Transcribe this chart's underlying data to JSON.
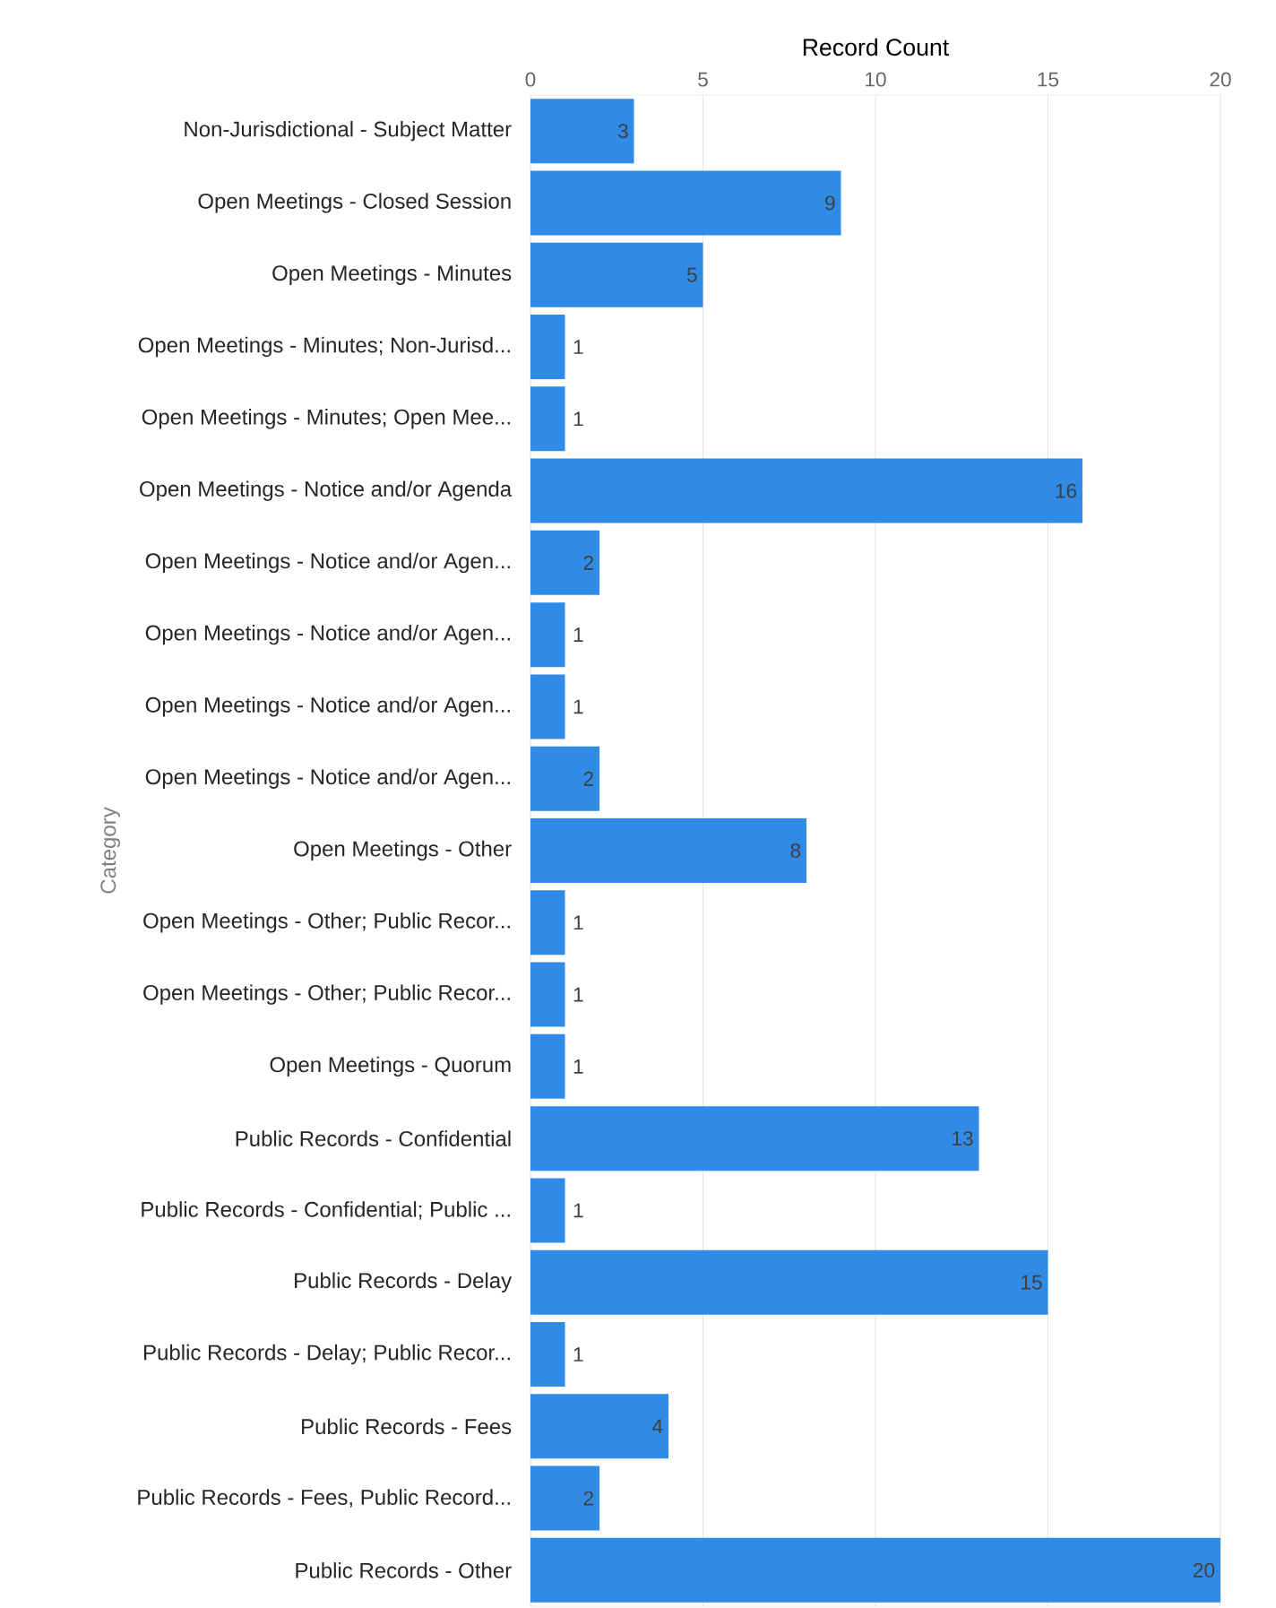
{
  "chart_data": {
    "type": "bar",
    "orientation": "horizontal",
    "xlabel": "Record Count",
    "ylabel": "Category",
    "categories": [
      "Non-Jurisdictional - Subject Matter",
      "Open Meetings - Closed Session",
      "Open Meetings - Minutes",
      "Open Meetings - Minutes; Non-Jurisd...",
      "Open Meetings - Minutes; Open Mee...",
      "Open Meetings - Notice and/or Agenda",
      "Open Meetings - Notice and/or Agen...",
      "Open Meetings - Notice and/or Agen...",
      "Open Meetings - Notice and/or Agen...",
      "Open Meetings - Notice and/or Agen...",
      "Open Meetings - Other",
      "Open Meetings - Other; Public Recor...",
      "Open Meetings - Other; Public Recor...",
      "Open Meetings - Quorum",
      "Public Records - Confidential",
      "Public Records - Confidential; Public ...",
      "Public Records - Delay",
      "Public Records - Delay; Public Recor...",
      "Public Records - Fees",
      "Public Records - Fees, Public Record...",
      "Public Records - Other"
    ],
    "values": [
      3,
      9,
      5,
      1,
      1,
      16,
      2,
      1,
      1,
      2,
      8,
      1,
      1,
      1,
      13,
      1,
      15,
      1,
      4,
      2,
      20
    ],
    "color": "#2f8be6",
    "xlim": [
      0,
      20
    ],
    "xticks": [
      0,
      5,
      10,
      15,
      20
    ],
    "grid": "x",
    "data_labels": true
  }
}
